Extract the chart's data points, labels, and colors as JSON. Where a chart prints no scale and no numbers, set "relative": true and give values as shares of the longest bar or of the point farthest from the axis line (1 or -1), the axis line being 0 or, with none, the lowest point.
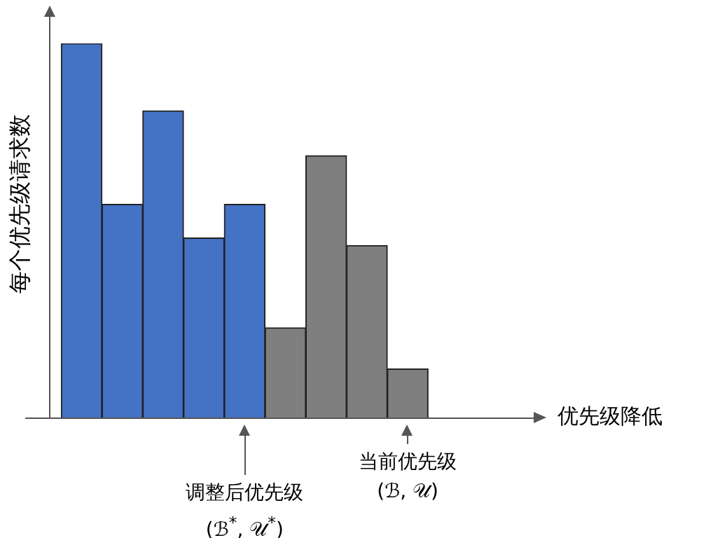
{
  "chart_data": {
    "type": "bar",
    "relative": true,
    "ylabel": "每个优先级请求数",
    "categories": [
      null,
      null,
      null,
      null,
      null,
      null,
      null,
      null,
      null
    ],
    "values": [
      1,
      0.57,
      0.82,
      0.48,
      0.57,
      0.24,
      0.7,
      0.46,
      0.13
    ],
    "colors": [
      "#4472c4",
      "#4472c4",
      "#4472c4",
      "#4472c4",
      "#4472c4",
      "#7f7f7f",
      "#7f7f7f",
      "#7f7f7f",
      "#7f7f7f"
    ],
    "annotations": [
      "优先级降低",
      "调整后优先级\n(ℬ$^{*}$, 𝒰$^{*}$)",
      "当前优先级\n(ℬ, 𝒰)"
    ],
    "legend": false,
    "grid": false
  }
}
